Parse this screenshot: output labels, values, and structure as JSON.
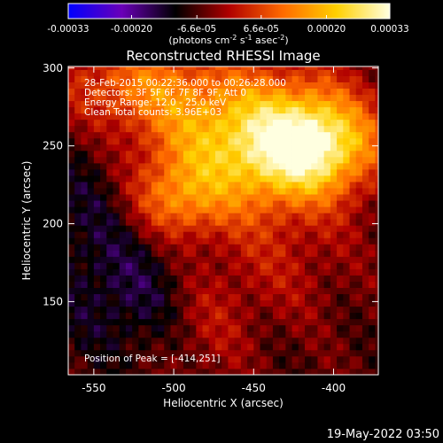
{
  "chart_data": {
    "type": "heatmap",
    "title": "Reconstructed RHESSI Image",
    "xlabel": "Heliocentric X (arcsec)",
    "ylabel": "Heliocentric Y (arcsec)",
    "xlim": [
      -566,
      -372
    ],
    "ylim": [
      103,
      301
    ],
    "x_ticks": [
      -550,
      -500,
      -450,
      -400
    ],
    "y_ticks": [
      150,
      200,
      250,
      300
    ],
    "colorbar": {
      "label": "(photons cm$^{-2}$ s$^{-1}$ asec$^{-2}$)",
      "label_parts": [
        "(photons cm",
        "-2",
        " s",
        "-1",
        " asec",
        "-2",
        ")"
      ],
      "range": [
        -0.00033,
        0.00033
      ],
      "tick_labels": [
        "-0.00033",
        "-0.00020",
        "-6.6e-05",
        "6.6e-05",
        "0.00020",
        "0.00033"
      ],
      "colors": [
        "#0000ff",
        "#6a00b8",
        "#000000",
        "#b00000",
        "#ff6a00",
        "#ffd000",
        "#ffffe0"
      ]
    },
    "annotations": [
      "28-Feb-2015 00:22:36.000 to 00:26:28.000",
      "Detectors: 3F 5F 6F 7F 8F 9F, Att 0",
      "Energy Range: 12.0 - 25.0 keV",
      "Clean    Total counts: 3.96E+03"
    ],
    "peak_label": "Position of Peak = [-414,251]",
    "peak": [
      -414,
      251
    ],
    "grid": false,
    "legend": "none"
  },
  "footer": {
    "timestamp": "19-May-2022 03:50"
  }
}
